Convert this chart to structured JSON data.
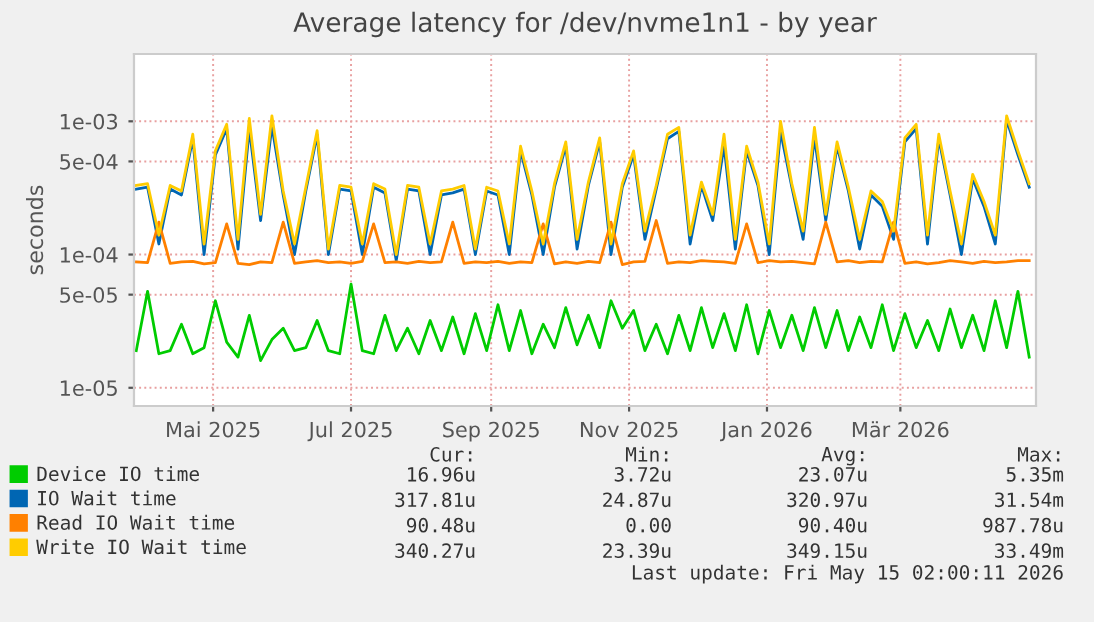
{
  "chart_data": {
    "type": "line",
    "title": "Average latency for /dev/nvme1n1 - by year",
    "ylabel": "seconds",
    "x": [
      "2025-04-12",
      "2025-04-17",
      "2025-04-22",
      "2025-04-27",
      "2025-05-02",
      "2025-05-07",
      "2025-05-12",
      "2025-05-17",
      "2025-05-22",
      "2025-05-27",
      "2025-06-01",
      "2025-06-06",
      "2025-06-11",
      "2025-06-16",
      "2025-06-21",
      "2025-06-26",
      "2025-07-01",
      "2025-07-06",
      "2025-07-11",
      "2025-07-16",
      "2025-07-21",
      "2025-07-26",
      "2025-07-31",
      "2025-08-05",
      "2025-08-10",
      "2025-08-15",
      "2025-08-20",
      "2025-08-25",
      "2025-08-30",
      "2025-09-04",
      "2025-09-09",
      "2025-09-14",
      "2025-09-19",
      "2025-09-24",
      "2025-09-29",
      "2025-10-04",
      "2025-10-09",
      "2025-10-14",
      "2025-10-19",
      "2025-10-24",
      "2025-10-29",
      "2025-11-03",
      "2025-11-08",
      "2025-11-13",
      "2025-11-18",
      "2025-11-23",
      "2025-11-28",
      "2025-12-03",
      "2025-12-08",
      "2025-12-13",
      "2025-12-18",
      "2025-12-23",
      "2025-12-28",
      "2026-01-02",
      "2026-01-07",
      "2026-01-12",
      "2026-01-17",
      "2026-01-22",
      "2026-01-27",
      "2026-02-01",
      "2026-02-06",
      "2026-02-11",
      "2026-02-16",
      "2026-02-21",
      "2026-02-26",
      "2026-03-03",
      "2026-03-08",
      "2026-03-13",
      "2026-03-18",
      "2026-03-23",
      "2026-03-28",
      "2026-04-02",
      "2026-04-07",
      "2026-04-12",
      "2026-04-17",
      "2026-04-22",
      "2026-04-27",
      "2026-05-02",
      "2026-05-07",
      "2026-05-12"
    ],
    "series": [
      {
        "name": "Device IO time",
        "color": "#00cc00",
        "values": [
          1.9e-05,
          5.3e-05,
          1.8e-05,
          1.9e-05,
          3e-05,
          1.8e-05,
          2e-05,
          4.5e-05,
          2.2e-05,
          1.7e-05,
          3.5e-05,
          1.6e-05,
          2.3e-05,
          2.8e-05,
          1.9e-05,
          2e-05,
          3.2e-05,
          1.9e-05,
          1.8e-05,
          6e-05,
          1.9e-05,
          1.8e-05,
          3.5e-05,
          1.9e-05,
          2.8e-05,
          1.8e-05,
          3.2e-05,
          1.9e-05,
          3.4e-05,
          1.8e-05,
          3.6e-05,
          1.9e-05,
          4.2e-05,
          1.9e-05,
          3.8e-05,
          1.8e-05,
          3e-05,
          2e-05,
          4e-05,
          2.1e-05,
          3.5e-05,
          2e-05,
          4.5e-05,
          2.8e-05,
          3.8e-05,
          1.9e-05,
          3e-05,
          1.8e-05,
          3.5e-05,
          1.9e-05,
          4e-05,
          2e-05,
          3.6e-05,
          1.9e-05,
          4.2e-05,
          1.8e-05,
          3.8e-05,
          2e-05,
          3.5e-05,
          1.9e-05,
          4e-05,
          2e-05,
          3.8e-05,
          1.9e-05,
          3.4e-05,
          2e-05,
          4.2e-05,
          1.9e-05,
          3.6e-05,
          2e-05,
          3.2e-05,
          1.9e-05,
          3.9e-05,
          2e-05,
          3.5e-05,
          1.9e-05,
          4.5e-05,
          2e-05,
          5.3e-05,
          1.7e-05
        ]
      },
      {
        "name": "IO Wait time",
        "color": "#0066b3",
        "values": [
          0.00031,
          0.00032,
          0.00012,
          0.00031,
          0.00028,
          0.00074,
          0.0001,
          0.00056,
          0.00088,
          0.00011,
          0.00088,
          0.00018,
          0.00092,
          0.00028,
          0.0001,
          0.0003,
          0.00079,
          0.0001,
          0.00031,
          0.0003,
          0.0001,
          0.00032,
          0.00029,
          9e-05,
          0.00031,
          0.0003,
          0.0001,
          0.00028,
          0.00029,
          0.00031,
          0.0001,
          0.0003,
          0.00028,
          0.0001,
          0.0006,
          0.00028,
          0.0001,
          0.00032,
          0.00065,
          0.00011,
          0.00033,
          0.0007,
          0.0001,
          0.00032,
          0.00056,
          0.00013,
          0.00031,
          0.00074,
          0.00084,
          0.00012,
          0.00033,
          0.00018,
          0.00066,
          0.00011,
          0.0006,
          0.00033,
          0.0001,
          0.00084,
          0.00032,
          0.00013,
          0.00076,
          0.00018,
          0.00065,
          0.0003,
          0.00011,
          0.00028,
          0.00023,
          0.00013,
          0.0007,
          0.00088,
          0.00012,
          0.00074,
          0.00028,
          0.0001,
          0.00037,
          0.00023,
          0.00012,
          0.00102,
          0.00056,
          0.00032
        ]
      },
      {
        "name": "Read IO Wait time",
        "color": "#ff8000",
        "values": [
          8.8e-05,
          8.7e-05,
          0.000175,
          8.6e-05,
          8.8e-05,
          8.9e-05,
          8.5e-05,
          8.7e-05,
          0.00017,
          8.6e-05,
          8.4e-05,
          8.8e-05,
          8.7e-05,
          0.000175,
          8.6e-05,
          8.8e-05,
          9e-05,
          8.7e-05,
          8.8e-05,
          8.6e-05,
          8.9e-05,
          0.00017,
          8.7e-05,
          8.8e-05,
          8.6e-05,
          8.9e-05,
          8.7e-05,
          8.8e-05,
          0.000175,
          8.6e-05,
          8.8e-05,
          8.7e-05,
          8.9e-05,
          8.6e-05,
          8.8e-05,
          8.7e-05,
          0.00017,
          8.5e-05,
          8.8e-05,
          8.6e-05,
          8.9e-05,
          8.7e-05,
          0.000175,
          8.4e-05,
          8.8e-05,
          8.9e-05,
          0.00018,
          8.6e-05,
          8.8e-05,
          8.7e-05,
          9e-05,
          8.9e-05,
          8.8e-05,
          8.6e-05,
          0.00017,
          8.7e-05,
          9e-05,
          8.8e-05,
          8.9e-05,
          8.7e-05,
          8.5e-05,
          0.000175,
          8.8e-05,
          9e-05,
          8.7e-05,
          8.9e-05,
          8.8e-05,
          0.000175,
          8.6e-05,
          8.8e-05,
          8.5e-05,
          8.7e-05,
          9e-05,
          8.8e-05,
          8.6e-05,
          8.9e-05,
          8.7e-05,
          8.8e-05,
          9e-05,
          9e-05
        ]
      },
      {
        "name": "Write IO Wait time",
        "color": "#ffcc00",
        "values": [
          0.00033,
          0.00034,
          0.00014,
          0.00033,
          0.0003,
          0.0008,
          0.00012,
          0.0006,
          0.00095,
          0.00013,
          0.00105,
          0.0002,
          0.0011,
          0.0003,
          0.00012,
          0.00032,
          0.00085,
          0.00011,
          0.00033,
          0.00032,
          0.00012,
          0.00034,
          0.00031,
          0.0001,
          0.00033,
          0.00032,
          0.00012,
          0.0003,
          0.00031,
          0.00033,
          0.00011,
          0.00032,
          0.0003,
          0.00012,
          0.00065,
          0.0003,
          0.00012,
          0.00034,
          0.0007,
          0.00013,
          0.00035,
          0.00075,
          0.00012,
          0.00034,
          0.0006,
          0.00015,
          0.00033,
          0.0008,
          0.0009,
          0.00014,
          0.00035,
          0.0002,
          0.0008,
          0.00013,
          0.00065,
          0.00035,
          0.00012,
          0.001,
          0.00034,
          0.00015,
          0.0009,
          0.0002,
          0.0007,
          0.00032,
          0.00013,
          0.0003,
          0.00025,
          0.00015,
          0.00075,
          0.00095,
          0.00014,
          0.0008,
          0.0003,
          0.00012,
          0.0004,
          0.00025,
          0.00014,
          0.0011,
          0.0006,
          0.00034
        ]
      }
    ],
    "log": "y",
    "xlim": [
      "2025-04-11",
      "2026-05-15"
    ],
    "ylim": [
      7.3e-06,
      0.0032
    ],
    "xticks": [
      {
        "value": "2025-05-16",
        "label": "Mai 2025"
      },
      {
        "value": "2025-07-16",
        "label": "Jul 2025"
      },
      {
        "value": "2025-09-16",
        "label": "Sep 2025"
      },
      {
        "value": "2025-11-16",
        "label": "Nov 2025"
      },
      {
        "value": "2026-01-16",
        "label": "Jan 2026"
      },
      {
        "value": "2026-03-16",
        "label": "Mär 2026"
      }
    ],
    "yticks": [
      {
        "value": 1e-05,
        "label": "1e-05"
      },
      {
        "value": 5e-05,
        "label": "5e-05"
      },
      {
        "value": 0.0001,
        "label": "1e-04"
      },
      {
        "value": 0.0005,
        "label": "5e-04"
      },
      {
        "value": 0.001,
        "label": "1e-03"
      }
    ],
    "grid": true,
    "legend": "bottom",
    "marker": "none",
    "line_style": "solid",
    "annotations": [
      "Cur:",
      "Min:",
      "Avg:",
      "Max:",
      "16.96u",
      "3.72u",
      "23.07u",
      "5.35m",
      "317.81u",
      "24.87u",
      "320.97u",
      "31.54m",
      "90.48u",
      "0.00",
      "90.40u",
      "987.78u",
      "340.27u",
      "23.39u",
      "349.15u",
      "33.49m",
      "Last update: Fri May 15 02:00:11 2026"
    ]
  }
}
